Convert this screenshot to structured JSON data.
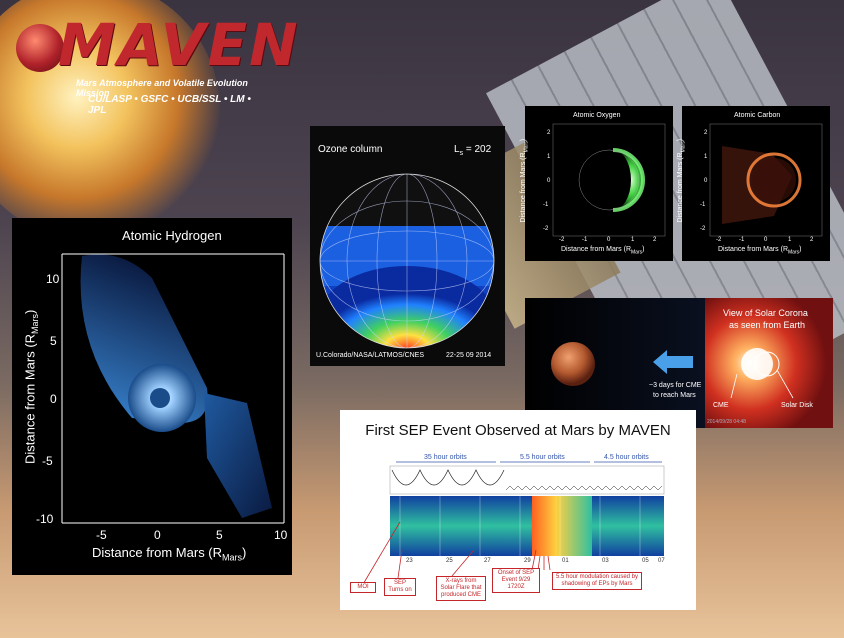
{
  "logo": {
    "title": "MAVEN",
    "subtitle": "Mars Atmosphere and Volatile Evolution Mission",
    "institutions": "CU/LASP • GSFC • UCB/SSL • LM • JPL"
  },
  "hydrogen": {
    "title": "Atomic Hydrogen",
    "xlabel": "Distance from Mars (R",
    "xlabel_sub": "Mars",
    "ylabel": "Distance from Mars (R",
    "ylabel_sub": "Mars",
    "xticks": [
      "-5",
      "0",
      "5",
      "10"
    ],
    "yticks": [
      "10",
      "5",
      "0",
      "-5",
      "-10"
    ]
  },
  "ozone": {
    "title": "Ozone column",
    "ls": "L",
    "ls_sub": "s",
    "ls_value": "= 202",
    "credit": "U.Colorado/NASA/LATMOS/CNES",
    "date": "22-25 09 2014"
  },
  "oxygen": {
    "title": "Atomic Oxygen",
    "xlabel": "Distance from Mars (R",
    "xlabel_sub": "Mars",
    "ylabel": "Distance from Mars (R",
    "ylabel_sub": "Mars",
    "xticks": [
      "-2",
      "-1",
      "0",
      "1",
      "2"
    ],
    "yticks": [
      "2",
      "1",
      "0",
      "-1",
      "-2"
    ]
  },
  "carbon": {
    "title": "Atomic Carbon",
    "xlabel": "Distance from Mars (R",
    "xlabel_sub": "Mars",
    "ylabel": "Distance from Mars (R",
    "ylabel_sub": "Mars",
    "xticks": [
      "-2",
      "-1",
      "0",
      "1",
      "2"
    ],
    "yticks": [
      "2",
      "1",
      "0",
      "-1",
      "-2"
    ]
  },
  "corona": {
    "title_line1": "View of Solar Corona",
    "title_line2": "as seen from Earth",
    "travel_line1": "~3 days for CME",
    "travel_line2": "to reach Mars",
    "cme_label": "CME",
    "disk_label": "Solar Disk",
    "timestamp": "2014/09/28 04:48"
  },
  "sep": {
    "title": "First SEP Event Observed at Mars by MAVEN",
    "orbits": [
      "35 hour orbits",
      "5.5 hour orbits",
      "4.5 hour orbits"
    ],
    "xticks": [
      "23",
      "25",
      "27",
      "29",
      "01",
      "03",
      "05",
      "07"
    ],
    "callouts": {
      "moi": "MOI",
      "sep_on": "SEP Turns on",
      "xrays": "X-rays from Solar Flare that produced CME",
      "onset": "Onset of SEP Event 9/29 1720Z",
      "modulation": "5.5 hour modulation caused by shadowing of EPs by Mars"
    }
  }
}
